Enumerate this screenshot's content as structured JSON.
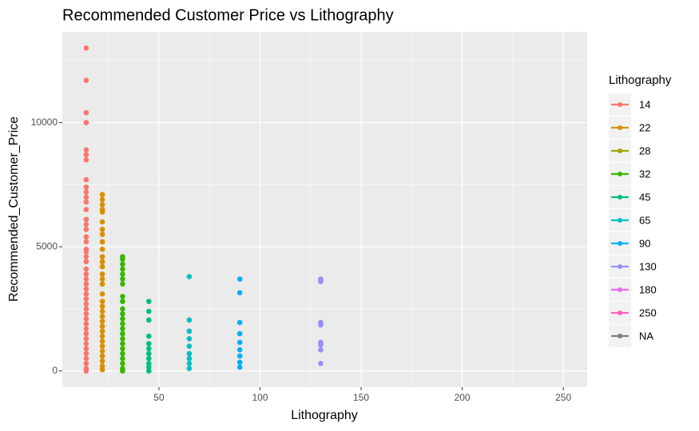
{
  "chart_data": {
    "type": "scatter",
    "title": "Recommended Customer Price vs Lithography",
    "x_label": "Lithography",
    "y_label": "Recommended_Customer_Price",
    "legend_title": "Lithography",
    "legend_position": "right",
    "grid": true,
    "xlim": [
      2.2,
      261.8
    ],
    "xticks": [
      50,
      100,
      150,
      200,
      250
    ],
    "x_minor_ticks": [
      25,
      75,
      125,
      175,
      225
    ],
    "ylim": [
      -650,
      13650
    ],
    "yticks": [
      0,
      5000,
      10000
    ],
    "y_minor_ticks": [
      2500,
      7500,
      12500
    ],
    "series": [
      {
        "name": "14",
        "color": "#F8766D",
        "x": [
          14,
          14,
          14,
          14,
          14,
          14,
          14,
          14,
          14,
          14,
          14,
          14,
          14,
          14,
          14,
          14,
          14,
          14,
          14,
          14,
          14,
          14,
          14,
          14,
          14,
          14,
          14,
          14,
          14,
          14,
          14,
          14,
          14,
          14,
          14,
          14,
          14,
          14,
          14,
          14,
          14,
          14,
          14,
          14
        ],
        "values": [
          13000,
          11700,
          10400,
          10000,
          8900,
          8700,
          8500,
          7700,
          7400,
          7200,
          7000,
          6800,
          6500,
          6100,
          5900,
          5700,
          5400,
          5200,
          4900,
          4800,
          4600,
          4400,
          4100,
          3900,
          3700,
          3500,
          3300,
          3100,
          2900,
          2700,
          2500,
          2300,
          2100,
          1900,
          1700,
          1500,
          1300,
          1100,
          900,
          700,
          500,
          300,
          100,
          0
        ]
      },
      {
        "name": "22",
        "color": "#D89000",
        "x": [
          22,
          22,
          22,
          22,
          22,
          22,
          22,
          22,
          22,
          22,
          22,
          22,
          22,
          22,
          22,
          22,
          22,
          22,
          22,
          22,
          22,
          22,
          22,
          22,
          22,
          22,
          22,
          22,
          22,
          22,
          22,
          22
        ],
        "values": [
          7100,
          6900,
          6700,
          6500,
          6400,
          6000,
          5700,
          5500,
          5200,
          4900,
          4600,
          4400,
          4200,
          3900,
          3700,
          3500,
          3100,
          2800,
          2600,
          2400,
          2200,
          2000,
          1800,
          1600,
          1400,
          1200,
          1000,
          800,
          600,
          400,
          200,
          50
        ]
      },
      {
        "name": "28",
        "color": "#A3A500"
      },
      {
        "name": "32",
        "color": "#39B600",
        "x": [
          32,
          32,
          32,
          32,
          32,
          32,
          32,
          32,
          32,
          32,
          32,
          32,
          32,
          32,
          32,
          32,
          32,
          32,
          32,
          32,
          32,
          32,
          32
        ],
        "values": [
          4600,
          4500,
          4300,
          4100,
          3900,
          3700,
          3500,
          3000,
          2800,
          2500,
          2300,
          2100,
          1900,
          1700,
          1500,
          1300,
          1100,
          900,
          700,
          500,
          300,
          100,
          0
        ]
      },
      {
        "name": "45",
        "color": "#00BF7D",
        "x": [
          45,
          45,
          45,
          45,
          45,
          45,
          45,
          45,
          45,
          45,
          45
        ],
        "values": [
          2800,
          2400,
          2050,
          1400,
          1100,
          900,
          700,
          500,
          300,
          150,
          0
        ]
      },
      {
        "name": "65",
        "color": "#00BFC4",
        "x": [
          65,
          65,
          65,
          65,
          65,
          65,
          65,
          65,
          65
        ],
        "values": [
          3800,
          2050,
          1600,
          1300,
          1000,
          700,
          500,
          300,
          100
        ]
      },
      {
        "name": "90",
        "color": "#00B0F6",
        "x": [
          90,
          90,
          90,
          90,
          90,
          90,
          90,
          90,
          90
        ],
        "values": [
          3700,
          3150,
          1950,
          1500,
          1150,
          850,
          600,
          350,
          150
        ]
      },
      {
        "name": "130",
        "color": "#9590FF",
        "x": [
          130,
          130,
          130,
          130,
          130,
          130,
          130,
          130
        ],
        "values": [
          3700,
          3600,
          1950,
          1850,
          1150,
          1050,
          850,
          300
        ]
      },
      {
        "name": "180",
        "color": "#E76BF3"
      },
      {
        "name": "250",
        "color": "#FF62BC"
      },
      {
        "name": "NA",
        "color": "#7F7F7F"
      }
    ]
  }
}
